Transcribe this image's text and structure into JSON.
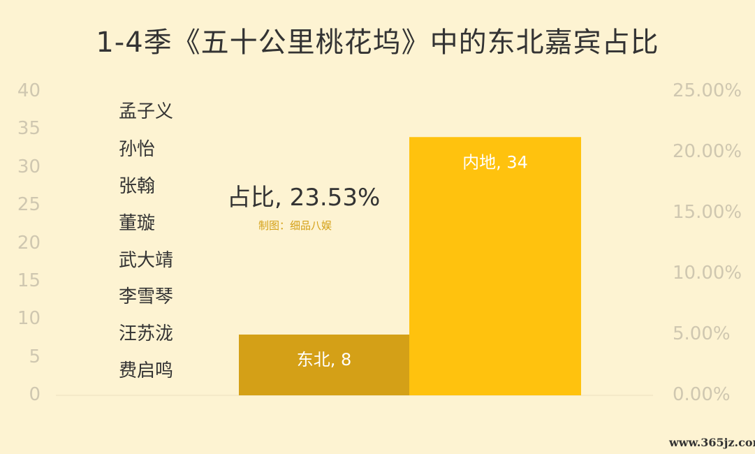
{
  "chart_data": {
    "type": "bar",
    "title": "1-4季《五十公里桃花坞》中的东北嘉宾占比",
    "categories": [
      "东北",
      "内地"
    ],
    "values": [
      8,
      34
    ],
    "data_labels": [
      "东北, 8",
      "内地, 34"
    ],
    "colors": [
      "#d4a017",
      "#ffc20e"
    ],
    "ylim": [
      0,
      40
    ],
    "y_ticks": [
      "0",
      "5",
      "10",
      "15",
      "20",
      "25",
      "30",
      "35",
      "40"
    ],
    "y2lim": [
      0,
      25
    ],
    "y2_ticks": [
      "0.00%",
      "5.00%",
      "10.00%",
      "15.00%",
      "20.00%",
      "25.00%"
    ],
    "annotation": "占比, 23.53%",
    "credit": "制图：细品八娱",
    "guest_names": [
      "孟子义",
      "孙怡",
      "张翰",
      "董璇",
      "武大靖",
      "李雪琴",
      "汪苏泷",
      "费启鸣"
    ],
    "legend": "none",
    "grid": false
  },
  "watermark": "www.365jz.com"
}
